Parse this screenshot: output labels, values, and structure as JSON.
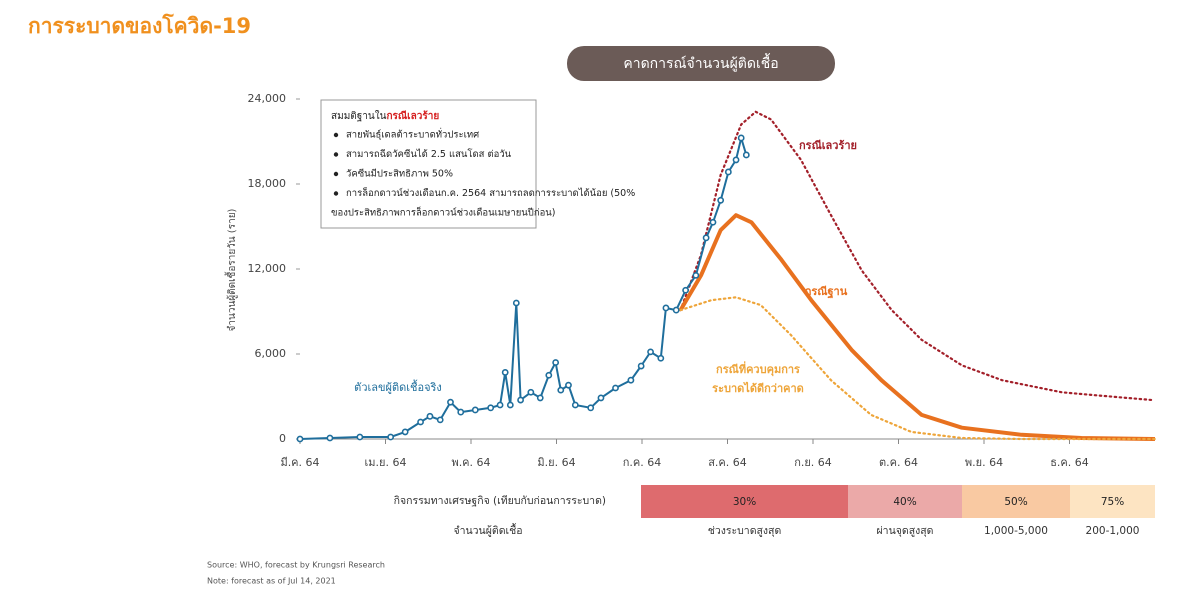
{
  "page_title": "การระบาดของโควิด-19",
  "chart_data": {
    "type": "line",
    "title": "คาดการณ์จำนวนผู้ติดเชื้อ",
    "y_label": "จำนวนผู้ติดเชื้อรายวัน (ราย)",
    "xlim": [
      0,
      10
    ],
    "ylim": [
      0,
      24000
    ],
    "xticks": [
      {
        "value": 0,
        "label": "มี.ค. 64"
      },
      {
        "value": 1,
        "label": "เม.ย. 64"
      },
      {
        "value": 2,
        "label": "พ.ค. 64"
      },
      {
        "value": 3,
        "label": "มิ.ย. 64"
      },
      {
        "value": 4,
        "label": "ก.ค. 64"
      },
      {
        "value": 5,
        "label": "ส.ค. 64"
      },
      {
        "value": 6,
        "label": "ก.ย. 64"
      },
      {
        "value": 7,
        "label": "ต.ค. 64"
      },
      {
        "value": 8,
        "label": "พ.ย. 64"
      },
      {
        "value": 9,
        "label": "ธ.ค. 64"
      }
    ],
    "yticks": [
      0,
      {
        "value": 6000,
        "label": "6,000"
      },
      {
        "value": 12000,
        "label": "12,000"
      },
      {
        "value": 18000,
        "label": "18,000"
      },
      {
        "value": 24000,
        "label": "24,000"
      }
    ],
    "series": [
      {
        "name": "ตัวเลขผู้ติดเชื้อจริง",
        "color": "#1f6e9c",
        "style": "markers",
        "x": [
          0,
          0.35,
          0.7,
          1.06,
          1.23,
          1.41,
          1.52,
          1.64,
          1.76,
          1.88,
          2.05,
          2.23,
          2.34,
          2.4,
          2.46,
          2.53,
          2.58,
          2.7,
          2.81,
          2.91,
          2.99,
          3.05,
          3.14,
          3.22,
          3.4,
          3.52,
          3.69,
          3.87,
          3.99,
          4.1,
          4.22,
          4.28,
          4.4,
          4.51,
          4.63,
          4.75,
          4.83,
          4.92,
          5.01,
          5.1,
          5.16,
          5.22
        ],
        "values": [
          0,
          70,
          140,
          140,
          500,
          1200,
          1600,
          1350,
          2600,
          1900,
          2050,
          2200,
          2400,
          4700,
          2400,
          9600,
          2750,
          3300,
          2900,
          4500,
          5400,
          3450,
          3800,
          2400,
          2200,
          2900,
          3600,
          4150,
          5150,
          6150,
          5700,
          9250,
          9100,
          10500,
          11550,
          14200,
          15300,
          16850,
          18850,
          19700,
          21250,
          20050
        ]
      },
      {
        "name": "กรณีเลวร้าย",
        "color": "#a3202a",
        "style": "dotted",
        "x": [
          4.45,
          4.69,
          4.92,
          5.16,
          5.33,
          5.51,
          5.86,
          6.21,
          6.57,
          6.92,
          7.27,
          7.74,
          8.21,
          8.91,
          9.38,
          9.96
        ],
        "values": [
          9100,
          13000,
          18650,
          22200,
          23100,
          22550,
          19700,
          15800,
          11900,
          9100,
          7000,
          5200,
          4150,
          3300,
          3050,
          2750
        ]
      },
      {
        "name": "กรณีฐาน",
        "color": "#e8711f",
        "style": "solid",
        "x": [
          4.45,
          4.69,
          4.92,
          5.1,
          5.28,
          5.63,
          5.98,
          6.45,
          6.8,
          7.27,
          7.74,
          8.44,
          9.14,
          10
        ],
        "values": [
          9100,
          11550,
          14750,
          15800,
          15300,
          12650,
          9800,
          6300,
          4150,
          1700,
          800,
          300,
          70,
          0
        ]
      },
      {
        "name": "กรณีที่ควบคุมการระบาดได้ดีกว่าคาด",
        "color": "#eea53a",
        "style": "dotted",
        "x": [
          4.45,
          4.81,
          5.1,
          5.39,
          5.74,
          6.21,
          6.68,
          7.15,
          7.74,
          8.44,
          10
        ],
        "values": [
          9100,
          9800,
          10000,
          9450,
          7350,
          4150,
          1700,
          500,
          70,
          0,
          0
        ]
      }
    ],
    "assumptions": {
      "heading": "สมมติฐานใน",
      "heading_highlight": "กรณีเลวร้าย",
      "items": [
        "สายพันธุ์เดลต้าระบาดทั่วประเทศ",
        "สามารถฉีดวัคซีนได้ 2.5 แสนโดส ต่อวัน",
        "วัคซีนมีประสิทธิภาพ 50%",
        "การล็อกดาวน์ช่วงเดือนก.ค. 2564 สามารถลดการระบาดได้น้อย (50%",
        "ของประสิทธิภาพการล็อกดาวน์ช่วงเดือนเมษายนปีก่อน)"
      ]
    }
  },
  "economic_table": {
    "row_labels": [
      "กิจกรรมทางเศรษฐกิจ (เทียบกับก่อนการระบาด)",
      "จำนวนผู้ติดเชื้อ"
    ],
    "columns": [
      {
        "activity": "30%",
        "cases": "ช่วงระบาดสูงสุด"
      },
      {
        "activity": "40%",
        "cases": "ผ่านจุดสูงสุด"
      },
      {
        "activity": "50%",
        "cases": "1,000-5,000"
      },
      {
        "activity": "75%",
        "cases": "200-1,000"
      }
    ]
  },
  "notes": [
    "Source: WHO, forecast by Krungsri Research",
    "Note: forecast as of Jul 14, 2021"
  ]
}
